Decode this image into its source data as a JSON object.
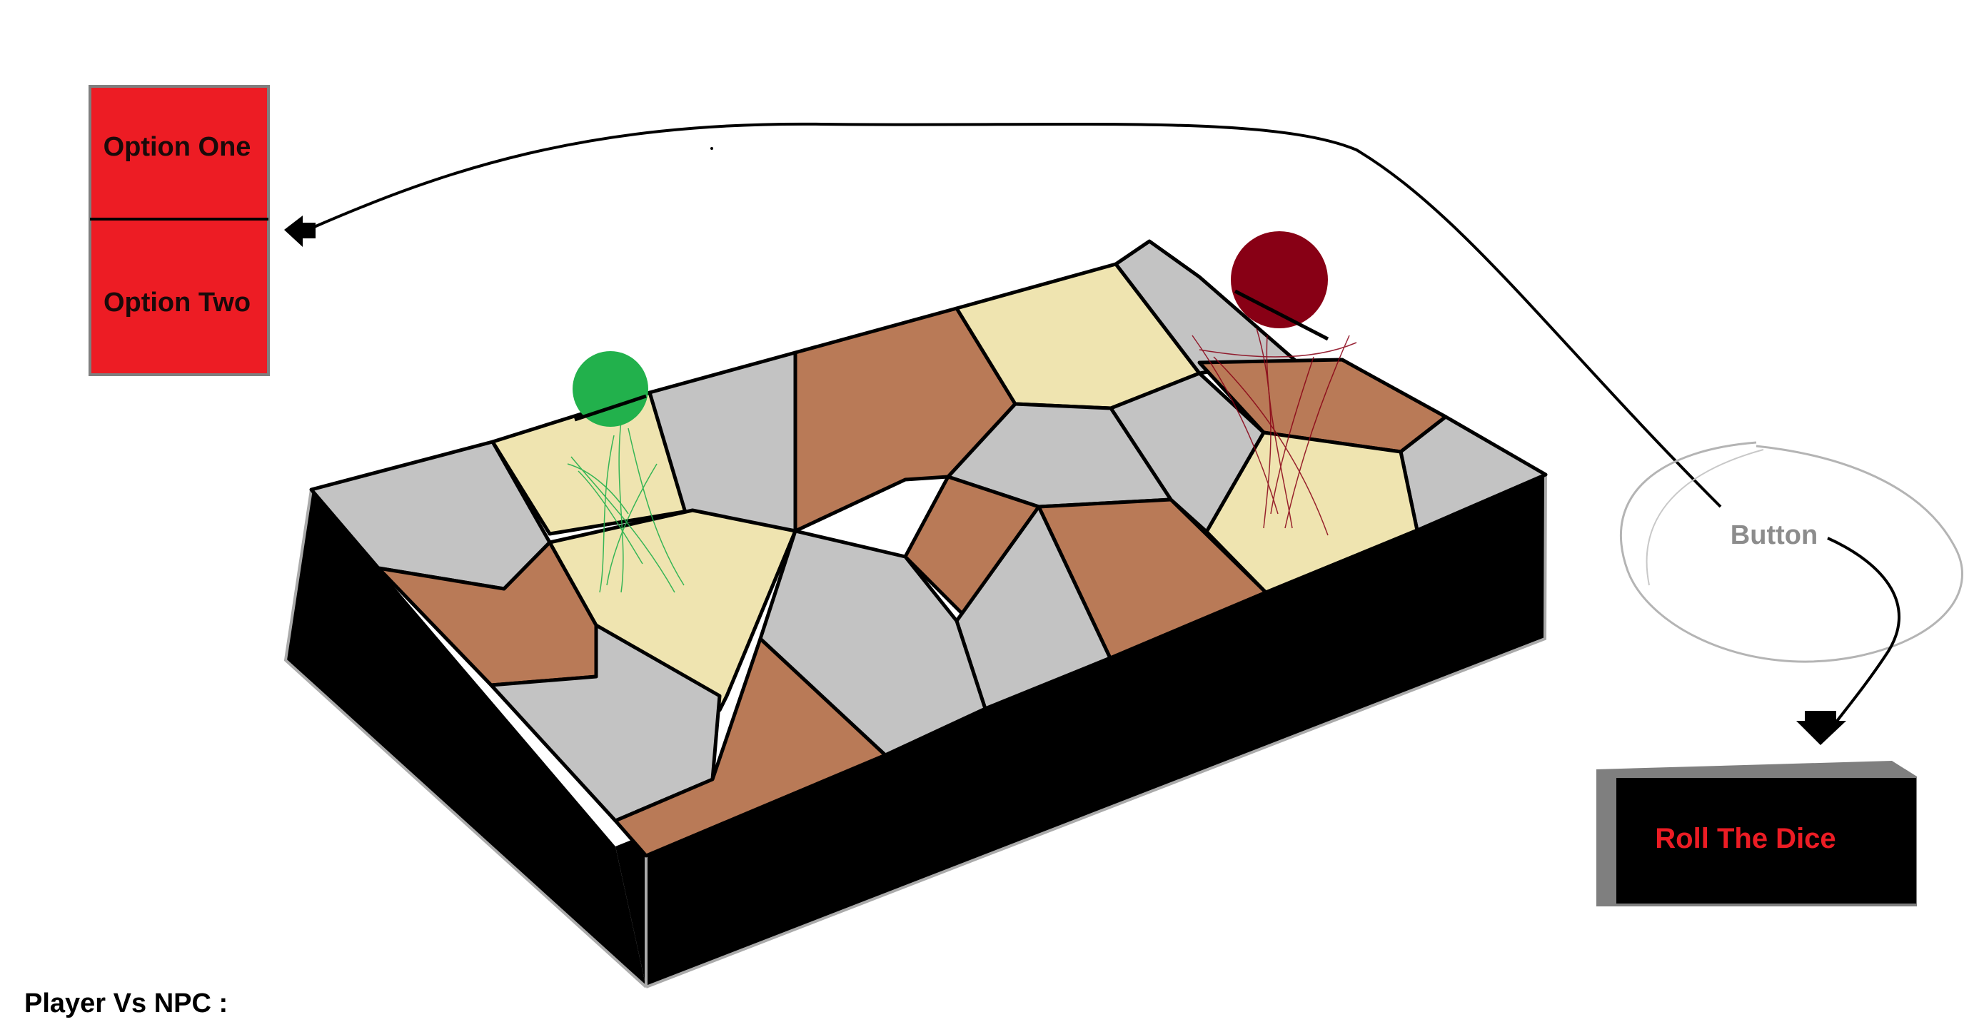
{
  "options_menu": {
    "option_one": "Option One",
    "option_two": "Option Two"
  },
  "button_note": {
    "label": "Button"
  },
  "roll_button": {
    "label": "Roll The Dice"
  },
  "mode_label": "Player Vs NPC :",
  "board": {
    "tile_colors": {
      "grey": "#c3c3c3",
      "brown": "#b97a57",
      "sand": "#efe4b0"
    },
    "side_color": "#000000"
  },
  "tokens": {
    "player": {
      "color": "#22b14c"
    },
    "npc": {
      "color": "#880015"
    }
  },
  "colors": {
    "option_bg": "#ed1c24",
    "roll_bg": "#000000",
    "roll_text": "#ec1c24"
  }
}
